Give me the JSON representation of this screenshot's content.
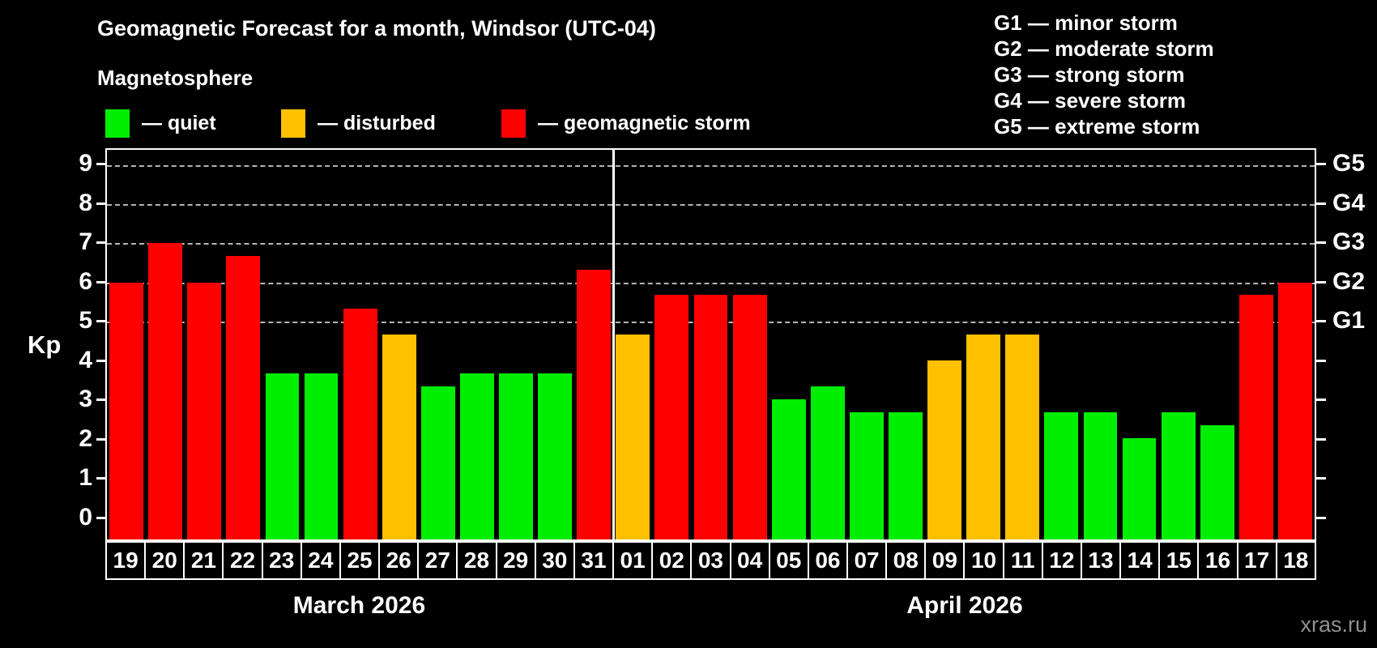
{
  "header": {
    "title": "Geomagnetic Forecast for a month, Windsor (UTC-04)",
    "subtitle": "Magnetosphere"
  },
  "magnetosphere_legend": {
    "items": [
      {
        "label": "— quiet",
        "status": "quiet"
      },
      {
        "label": "— disturbed",
        "status": "disturbed"
      },
      {
        "label": "— geomagnetic storm",
        "status": "storm"
      }
    ]
  },
  "g_storm_legend": {
    "lines": [
      "G1 — minor storm",
      "G2 — moderate storm",
      "G3 — strong storm",
      "G4 — severe storm",
      "G5 — extreme storm"
    ]
  },
  "axes": {
    "y_label": "Kp",
    "y_ticks": [
      0,
      1,
      2,
      3,
      4,
      5,
      6,
      7,
      8,
      9
    ],
    "right_labels": [
      {
        "kp": 5,
        "label": "G1"
      },
      {
        "kp": 6,
        "label": "G2"
      },
      {
        "kp": 7,
        "label": "G3"
      },
      {
        "kp": 8,
        "label": "G4"
      },
      {
        "kp": 9,
        "label": "G5"
      }
    ]
  },
  "colors": {
    "background": "#000000",
    "text": "#ffffff",
    "grid": "#b4b4b4",
    "watermark": "#909090",
    "quiet": "#00ee00",
    "disturbed": "#ffc000",
    "storm": "#ff0000"
  },
  "footer": {
    "watermark": "xras.ru"
  },
  "chart_data": {
    "type": "bar",
    "title": "Geomagnetic Forecast for a month, Windsor (UTC-04)",
    "xlabel": "",
    "ylabel": "Kp",
    "ylim": [
      0,
      9
    ],
    "grid": "dashed horizontal at Kp 5-9",
    "gridlines_at_kp": [
      5,
      6,
      7,
      8,
      9
    ],
    "legend_position": "top-left and top-right",
    "groups": [
      {
        "month_label": "March 2026",
        "points": [
          {
            "day": "19",
            "kp": 6.0,
            "status": "storm"
          },
          {
            "day": "20",
            "kp": 7.0,
            "status": "storm"
          },
          {
            "day": "21",
            "kp": 6.0,
            "status": "storm"
          },
          {
            "day": "22",
            "kp": 6.67,
            "status": "storm"
          },
          {
            "day": "23",
            "kp": 3.67,
            "status": "quiet"
          },
          {
            "day": "24",
            "kp": 3.67,
            "status": "quiet"
          },
          {
            "day": "25",
            "kp": 5.33,
            "status": "storm"
          },
          {
            "day": "26",
            "kp": 4.67,
            "status": "disturbed"
          },
          {
            "day": "27",
            "kp": 3.33,
            "status": "quiet"
          },
          {
            "day": "28",
            "kp": 3.67,
            "status": "quiet"
          },
          {
            "day": "29",
            "kp": 3.67,
            "status": "quiet"
          },
          {
            "day": "30",
            "kp": 3.67,
            "status": "quiet"
          },
          {
            "day": "31",
            "kp": 6.33,
            "status": "storm"
          }
        ]
      },
      {
        "month_label": "April 2026",
        "points": [
          {
            "day": "01",
            "kp": 4.67,
            "status": "disturbed"
          },
          {
            "day": "02",
            "kp": 5.67,
            "status": "storm"
          },
          {
            "day": "03",
            "kp": 5.67,
            "status": "storm"
          },
          {
            "day": "04",
            "kp": 5.67,
            "status": "storm"
          },
          {
            "day": "05",
            "kp": 3.0,
            "status": "quiet"
          },
          {
            "day": "06",
            "kp": 3.33,
            "status": "quiet"
          },
          {
            "day": "07",
            "kp": 2.67,
            "status": "quiet"
          },
          {
            "day": "08",
            "kp": 2.67,
            "status": "quiet"
          },
          {
            "day": "09",
            "kp": 4.0,
            "status": "disturbed"
          },
          {
            "day": "10",
            "kp": 4.67,
            "status": "disturbed"
          },
          {
            "day": "11",
            "kp": 4.67,
            "status": "disturbed"
          },
          {
            "day": "12",
            "kp": 2.67,
            "status": "quiet"
          },
          {
            "day": "13",
            "kp": 2.67,
            "status": "quiet"
          },
          {
            "day": "14",
            "kp": 2.0,
            "status": "quiet"
          },
          {
            "day": "15",
            "kp": 2.67,
            "status": "quiet"
          },
          {
            "day": "16",
            "kp": 2.33,
            "status": "quiet"
          },
          {
            "day": "17",
            "kp": 5.67,
            "status": "storm"
          },
          {
            "day": "18",
            "kp": 6.0,
            "status": "storm"
          }
        ]
      }
    ]
  }
}
